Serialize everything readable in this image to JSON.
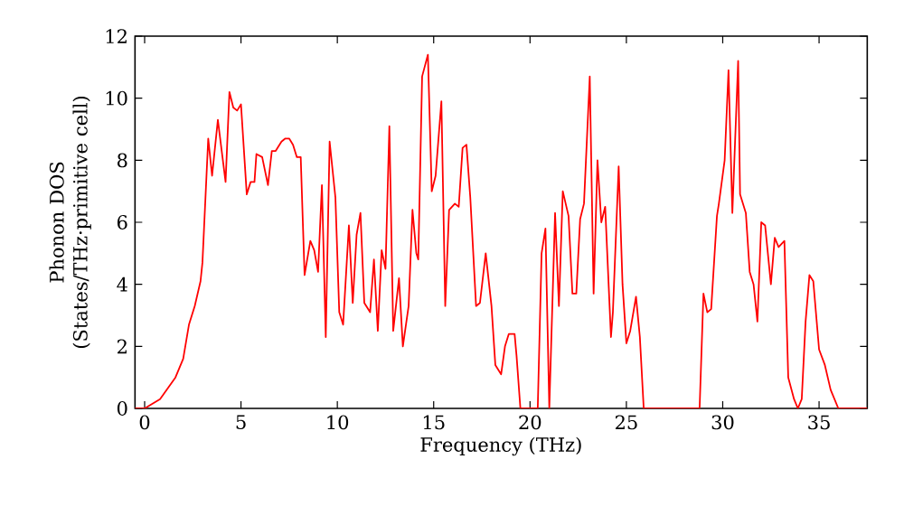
{
  "chart_data": {
    "type": "line",
    "xlabel": "Frequency (THz)",
    "ylabel": "Phonon DOS (States/THz·primitive cell)",
    "xlim": [
      -0.5,
      37.5
    ],
    "ylim": [
      0,
      12
    ],
    "xticks": [
      0,
      5,
      10,
      15,
      20,
      25,
      30,
      35
    ],
    "yticks": [
      0,
      2,
      4,
      6,
      8,
      10,
      12
    ],
    "grid": false,
    "marker": "none",
    "line_style": "solid",
    "series": [
      {
        "color": "#ff0000",
        "x": [
          -0.5,
          0.0,
          0.8,
          1.6,
          2.0,
          2.3,
          2.5,
          2.6,
          2.9,
          3.0,
          3.3,
          3.5,
          3.8,
          4.0,
          4.2,
          4.4,
          4.6,
          4.8,
          5.0,
          5.3,
          5.5,
          5.7,
          5.8,
          6.1,
          6.4,
          6.6,
          6.8,
          7.1,
          7.3,
          7.5,
          7.7,
          7.9,
          8.1,
          8.3,
          8.6,
          8.8,
          9.0,
          9.2,
          9.4,
          9.6,
          9.9,
          10.1,
          10.3,
          10.6,
          10.8,
          11.0,
          11.2,
          11.4,
          11.7,
          11.9,
          12.1,
          12.3,
          12.5,
          12.7,
          12.9,
          13.2,
          13.4,
          13.7,
          13.9,
          14.1,
          14.2,
          14.4,
          14.7,
          14.9,
          15.1,
          15.4,
          15.6,
          15.8,
          16.1,
          16.3,
          16.5,
          16.7,
          16.9,
          17.2,
          17.4,
          17.7,
          18.0,
          18.2,
          18.5,
          18.7,
          18.9,
          19.2,
          19.3,
          19.5,
          20.4,
          20.6,
          20.8,
          21.0,
          21.3,
          21.5,
          21.7,
          22.0,
          22.2,
          22.4,
          22.6,
          22.8,
          23.1,
          23.3,
          23.5,
          23.7,
          23.9,
          24.2,
          24.3,
          24.6,
          24.8,
          25.0,
          25.2,
          25.5,
          25.7,
          25.9,
          28.8,
          29.0,
          29.2,
          29.4,
          29.7,
          29.8,
          30.1,
          30.3,
          30.5,
          30.8,
          30.9,
          31.2,
          31.4,
          31.6,
          31.8,
          32.0,
          32.2,
          32.5,
          32.7,
          32.9,
          33.2,
          33.4,
          33.7,
          33.9,
          34.1,
          34.3,
          34.5,
          34.7,
          35.0,
          35.3,
          35.6,
          36.0,
          37.5
        ],
        "values": [
          0,
          0,
          0.3,
          1.0,
          1.6,
          2.7,
          3.1,
          3.3,
          4.1,
          4.7,
          8.7,
          7.5,
          9.3,
          8.3,
          7.3,
          10.2,
          9.7,
          9.6,
          9.8,
          6.9,
          7.3,
          7.3,
          8.2,
          8.1,
          7.2,
          8.3,
          8.3,
          8.6,
          8.7,
          8.7,
          8.5,
          8.1,
          8.1,
          4.3,
          5.4,
          5.1,
          4.4,
          7.2,
          2.3,
          8.6,
          6.8,
          3.1,
          2.7,
          5.9,
          3.4,
          5.6,
          6.3,
          3.4,
          3.1,
          4.8,
          2.5,
          5.1,
          4.5,
          9.1,
          2.5,
          4.2,
          2.0,
          3.3,
          6.4,
          5.0,
          4.8,
          10.7,
          11.4,
          7.0,
          7.5,
          9.9,
          3.3,
          6.4,
          6.6,
          6.5,
          8.4,
          8.5,
          6.8,
          3.3,
          3.4,
          5.0,
          3.3,
          1.4,
          1.1,
          2.0,
          2.4,
          2.4,
          1.7,
          0,
          0,
          5.0,
          5.8,
          0,
          6.3,
          3.3,
          7.0,
          6.2,
          3.7,
          3.7,
          6.1,
          6.6,
          10.7,
          3.7,
          8.0,
          6.0,
          6.5,
          2.3,
          3.1,
          7.8,
          4.0,
          2.1,
          2.5,
          3.6,
          2.3,
          0,
          0,
          3.7,
          3.1,
          3.2,
          6.2,
          6.6,
          8.0,
          10.9,
          6.3,
          11.2,
          6.9,
          6.3,
          4.4,
          4.0,
          2.8,
          6.0,
          5.9,
          4.0,
          5.5,
          5.2,
          5.4,
          1.0,
          0.3,
          0,
          0.3,
          2.8,
          4.3,
          4.1,
          1.9,
          1.4,
          0.6,
          0,
          0
        ]
      }
    ]
  }
}
